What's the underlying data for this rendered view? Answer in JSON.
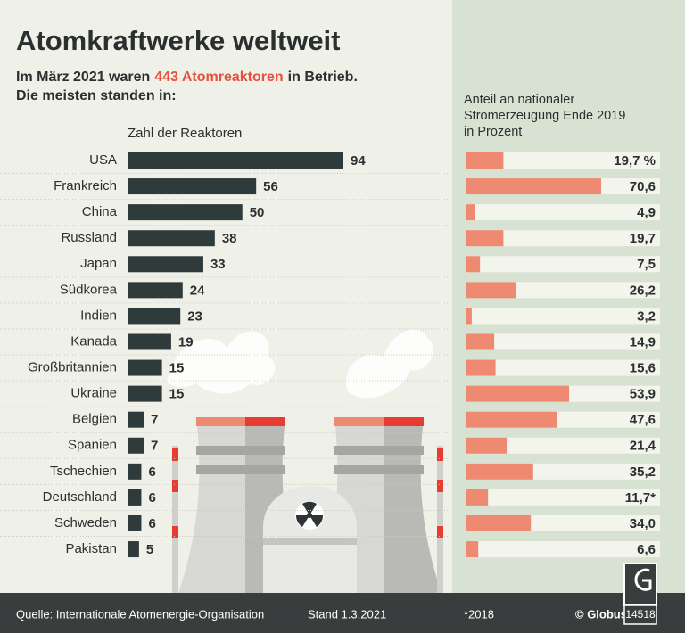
{
  "chart_data": {
    "type": "bar",
    "title": "Atomkraftwerke weltweit",
    "subtitle": [
      "Im März 2021 waren",
      "443 Atomreaktoren",
      "in Betrieb."
    ],
    "subtitle_line2": "Die meisten standen in:",
    "categories": [
      "USA",
      "Frankreich",
      "China",
      "Russland",
      "Japan",
      "Südkorea",
      "Indien",
      "Kanada",
      "Großbritannien",
      "Ukraine",
      "Belgien",
      "Spanien",
      "Tschechien",
      "Deutschland",
      "Schweden",
      "Pakistan"
    ],
    "series": [
      {
        "name": "Zahl der Reaktoren",
        "color": "#2f3a3b",
        "values": [
          94,
          56,
          50,
          38,
          33,
          24,
          23,
          19,
          15,
          15,
          7,
          7,
          6,
          6,
          6,
          5
        ]
      },
      {
        "name": "Anteil an nationaler Stromerzeugung Ende 2019 in Prozent",
        "color": "#ee8a72",
        "values": [
          19.7,
          70.6,
          4.9,
          19.7,
          7.5,
          26.2,
          3.2,
          14.9,
          15.6,
          53.9,
          47.6,
          21.4,
          35.2,
          11.7,
          34.0,
          6.6
        ],
        "value_labels": [
          "19,7 %",
          "70,6",
          "4,9",
          "19,7",
          "7,5",
          "26,2",
          "3,2",
          "14,9",
          "15,6",
          "53,9",
          "47,6",
          "21,4",
          "35,2",
          "11,7*",
          "34,0",
          "6,6"
        ]
      }
    ]
  },
  "footer": {
    "source": "Quelle: Internationale Atomenergie-Organisation",
    "date": "Stand 1.3.2021",
    "note": "*2018",
    "publisher": "© Globus",
    "code": "14518"
  }
}
